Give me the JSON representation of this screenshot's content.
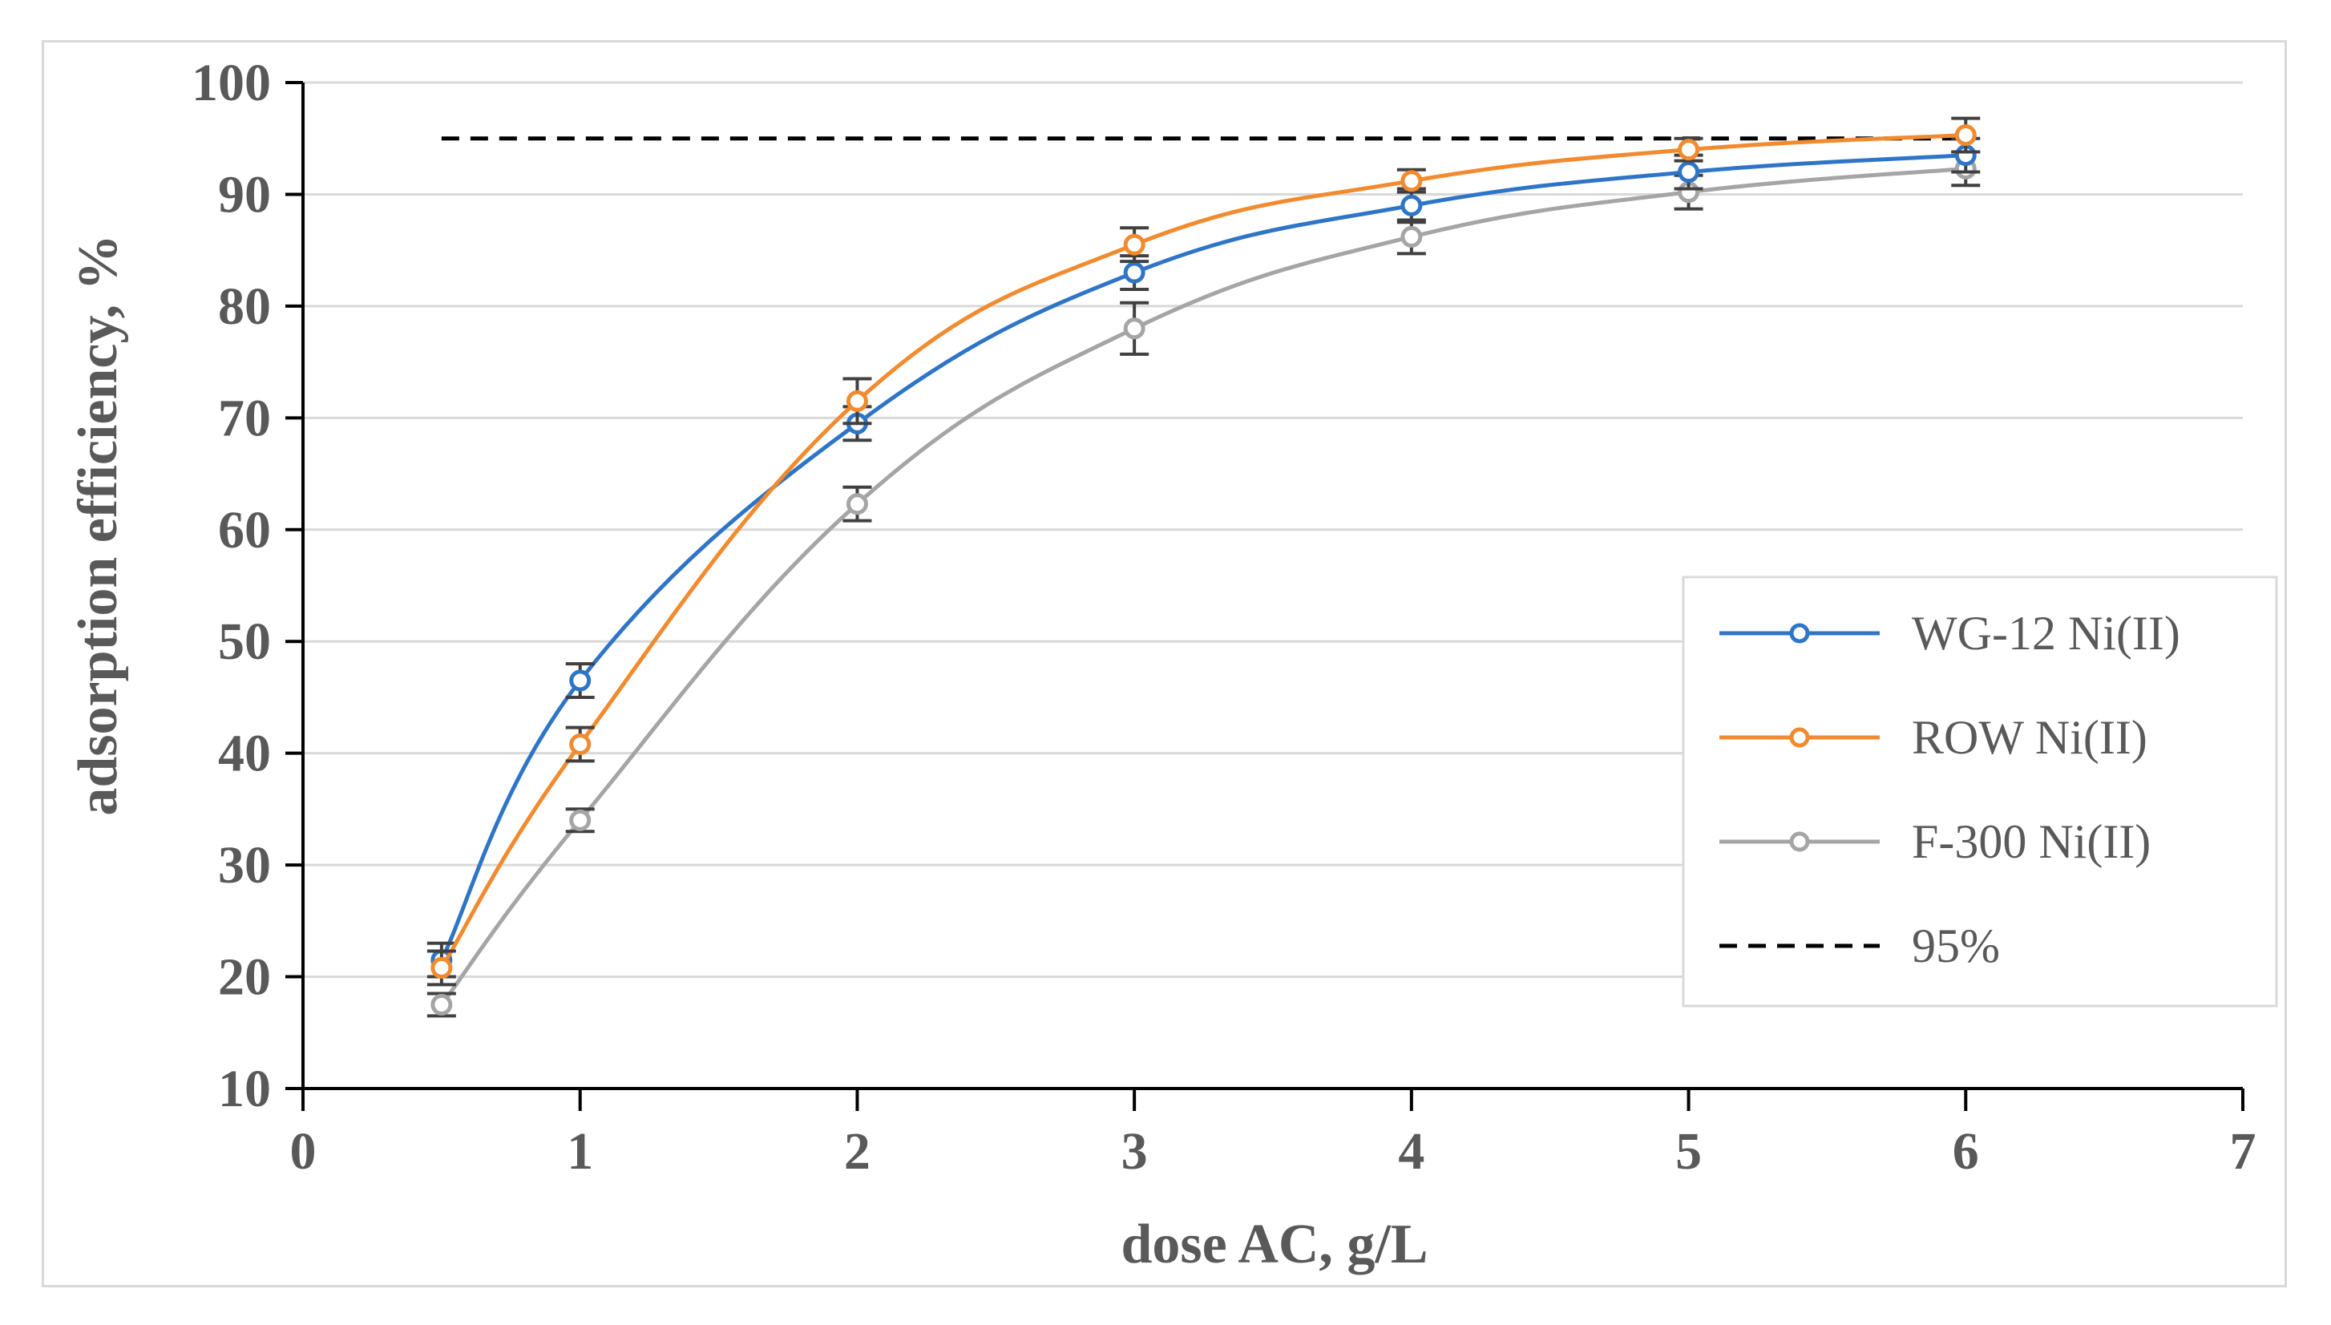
{
  "chart_data": {
    "type": "line",
    "title": "",
    "xlabel": "dose AC, g/L",
    "ylabel": "adsorption efficiency, %",
    "xlim": [
      0,
      7
    ],
    "ylim": [
      10,
      100
    ],
    "xticks": [
      0,
      1,
      2,
      3,
      4,
      5,
      6,
      7
    ],
    "yticks": [
      10,
      20,
      30,
      40,
      50,
      60,
      70,
      80,
      90,
      100
    ],
    "x_tick_labels": [
      "0",
      "1",
      "2",
      "3",
      "4",
      "5",
      "6",
      "7"
    ],
    "y_tick_labels": [
      "10",
      "20",
      "30",
      "40",
      "50",
      "60",
      "70",
      "80",
      "90",
      "100"
    ],
    "grid": true,
    "legend_position": "right",
    "series": [
      {
        "name": "WG-12 Ni(II)",
        "color": "#2e75c7",
        "x": [
          0.5,
          1,
          2,
          3,
          4,
          5,
          6
        ],
        "values": [
          21.5,
          46.5,
          69.5,
          83.0,
          89.0,
          92.0,
          93.5
        ],
        "errors": [
          1.5,
          1.5,
          1.5,
          1.5,
          1.5,
          1.5,
          1.5
        ]
      },
      {
        "name": "ROW Ni(II)",
        "color": "#f28a2e",
        "x": [
          0.5,
          1,
          2,
          3,
          4,
          5,
          6
        ],
        "values": [
          20.8,
          40.8,
          71.5,
          85.5,
          91.2,
          94.0,
          95.3
        ],
        "errors": [
          1.5,
          1.5,
          2.0,
          1.5,
          1.0,
          1.0,
          1.5
        ]
      },
      {
        "name": "F-300 Ni(II)",
        "color": "#a5a5a5",
        "x": [
          0.5,
          1,
          2,
          3,
          4,
          5,
          6
        ],
        "values": [
          17.5,
          34.0,
          62.3,
          78.0,
          86.2,
          90.2,
          92.3
        ],
        "errors": [
          1.0,
          1.0,
          1.5,
          2.3,
          1.5,
          1.5,
          1.5
        ]
      }
    ],
    "reference_line": {
      "name": "95%",
      "value": 95,
      "x": [
        0.5,
        6
      ],
      "color": "#000000",
      "style": "dashed"
    }
  }
}
